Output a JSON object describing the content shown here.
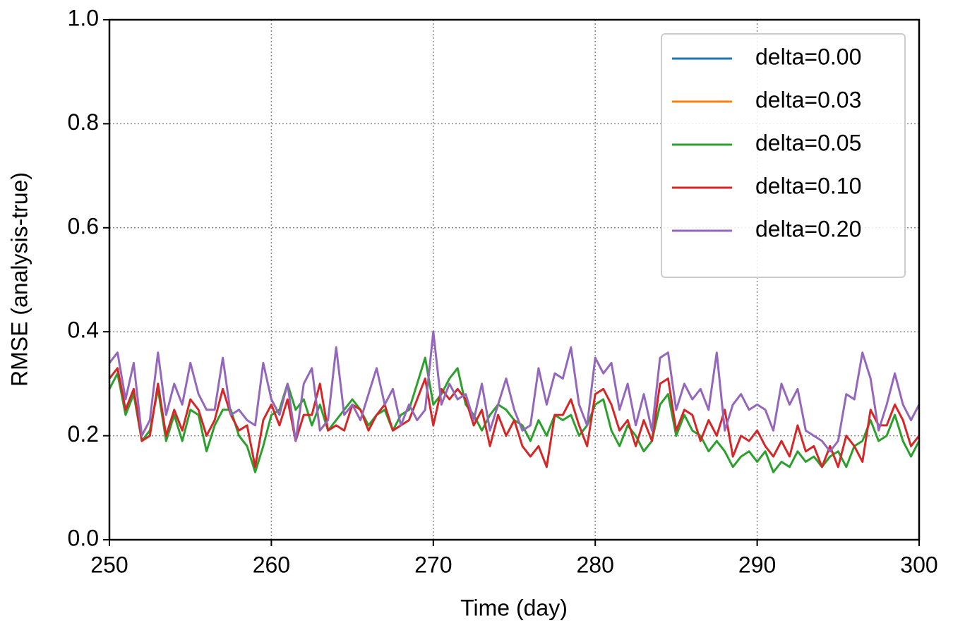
{
  "chart_data": {
    "type": "line",
    "xlabel": "Time (day)",
    "ylabel": "RMSE (analysis-true)",
    "xlim": [
      250,
      300
    ],
    "ylim": [
      0,
      1
    ],
    "xticks": [
      250,
      260,
      270,
      280,
      290,
      300
    ],
    "yticks": [
      {
        "value": 0,
        "label": "0.0"
      },
      0.2,
      0.4,
      0.6,
      0.8,
      {
        "value": 1,
        "label": "1.0"
      }
    ],
    "grid": true,
    "legend": "upper right",
    "x": [
      250,
      250.5,
      251,
      251.5,
      252,
      252.5,
      253,
      253.5,
      254,
      254.5,
      255,
      255.5,
      256,
      256.5,
      257,
      257.5,
      258,
      258.5,
      259,
      259.5,
      260,
      260.5,
      261,
      261.5,
      262,
      262.5,
      263,
      263.5,
      264,
      264.5,
      265,
      265.5,
      266,
      266.5,
      267,
      267.5,
      268,
      268.5,
      269,
      269.5,
      270,
      270.5,
      271,
      271.5,
      272,
      272.5,
      273,
      273.5,
      274,
      274.5,
      275,
      275.5,
      276,
      276.5,
      277,
      277.5,
      278,
      278.5,
      279,
      279.5,
      280,
      280.5,
      281,
      281.5,
      282,
      282.5,
      283,
      283.5,
      284,
      284.5,
      285,
      285.5,
      286,
      286.5,
      287,
      287.5,
      288,
      288.5,
      289,
      289.5,
      290,
      290.5,
      291,
      291.5,
      292,
      292.5,
      293,
      293.5,
      294,
      294.5,
      295,
      295.5,
      296,
      296.5,
      297,
      297.5,
      298,
      298.5,
      299,
      299.5,
      300
    ],
    "series": [
      {
        "name": "delta=0.00",
        "color": "#1f77b4",
        "values": [
          null,
          null,
          null,
          null,
          null,
          null,
          null,
          null,
          null,
          null,
          null,
          null,
          null,
          null,
          null,
          null,
          null,
          null,
          null,
          null,
          null,
          null,
          null,
          null,
          null,
          null,
          null,
          null,
          null,
          null,
          null,
          null,
          null,
          null,
          null,
          null,
          null,
          null,
          null,
          null,
          null,
          null,
          null,
          null,
          null,
          null,
          null,
          null,
          null,
          null,
          null,
          null,
          null,
          null,
          null,
          null,
          null,
          null,
          null,
          null,
          null,
          null,
          null,
          null,
          null,
          null,
          null,
          null,
          null,
          null,
          null,
          null,
          null,
          null,
          null,
          null,
          null,
          null,
          null,
          null,
          null,
          null,
          null,
          null,
          null,
          null,
          null,
          null,
          null,
          null,
          null,
          null,
          null,
          null,
          null,
          null,
          null,
          null,
          null,
          null,
          null
        ]
      },
      {
        "name": "delta=0.03",
        "color": "#ff7f0e",
        "values": [
          null,
          null,
          null,
          null,
          null,
          null,
          null,
          null,
          null,
          null,
          null,
          null,
          null,
          null,
          null,
          null,
          null,
          null,
          null,
          null,
          null,
          null,
          null,
          null,
          null,
          null,
          null,
          null,
          null,
          null,
          null,
          null,
          null,
          null,
          null,
          null,
          null,
          null,
          null,
          null,
          null,
          null,
          null,
          null,
          null,
          null,
          null,
          null,
          null,
          null,
          null,
          null,
          null,
          null,
          null,
          null,
          null,
          null,
          null,
          null,
          null,
          null,
          null,
          null,
          null,
          null,
          null,
          null,
          null,
          null,
          null,
          null,
          null,
          null,
          null,
          null,
          null,
          null,
          null,
          null,
          null,
          null,
          null,
          null,
          null,
          null,
          null,
          null,
          null,
          null,
          null,
          null,
          null,
          null,
          null,
          null,
          null,
          null,
          null,
          null,
          null
        ]
      },
      {
        "name": "delta=0.05",
        "color": "#2ca02c",
        "values": [
          0.29,
          0.32,
          0.24,
          0.28,
          0.19,
          0.21,
          0.29,
          0.19,
          0.24,
          0.19,
          0.25,
          0.24,
          0.17,
          0.22,
          0.25,
          0.25,
          0.2,
          0.18,
          0.13,
          0.18,
          0.24,
          0.25,
          0.3,
          0.25,
          0.27,
          0.22,
          0.26,
          0.21,
          0.23,
          0.25,
          0.27,
          0.25,
          0.22,
          0.24,
          0.25,
          0.21,
          0.24,
          0.25,
          0.3,
          0.35,
          0.26,
          0.28,
          0.31,
          0.33,
          0.26,
          0.24,
          0.21,
          0.24,
          0.26,
          0.25,
          0.23,
          0.22,
          0.19,
          0.23,
          0.2,
          0.24,
          0.23,
          0.24,
          0.2,
          0.22,
          0.26,
          0.27,
          0.21,
          0.18,
          0.22,
          0.2,
          0.17,
          0.19,
          0.26,
          0.28,
          0.2,
          0.24,
          0.21,
          0.2,
          0.17,
          0.19,
          0.17,
          0.14,
          0.16,
          0.17,
          0.15,
          0.17,
          0.13,
          0.15,
          0.14,
          0.17,
          0.15,
          0.16,
          0.14,
          0.16,
          0.17,
          0.14,
          0.18,
          0.19,
          0.23,
          0.19,
          0.2,
          0.24,
          0.19,
          0.16,
          0.19
        ]
      },
      {
        "name": "delta=0.10",
        "color": "#d62728",
        "values": [
          0.31,
          0.33,
          0.25,
          0.29,
          0.19,
          0.2,
          0.3,
          0.2,
          0.25,
          0.21,
          0.27,
          0.25,
          0.2,
          0.23,
          0.29,
          0.24,
          0.21,
          0.22,
          0.14,
          0.23,
          0.26,
          0.22,
          0.27,
          0.19,
          0.24,
          0.24,
          0.3,
          0.21,
          0.22,
          0.21,
          0.26,
          0.25,
          0.21,
          0.24,
          0.26,
          0.21,
          0.22,
          0.23,
          0.27,
          0.31,
          0.22,
          0.29,
          0.27,
          0.29,
          0.27,
          0.22,
          0.25,
          0.18,
          0.24,
          0.2,
          0.23,
          0.18,
          0.16,
          0.18,
          0.14,
          0.24,
          0.24,
          0.27,
          0.22,
          0.18,
          0.28,
          0.29,
          0.26,
          0.21,
          0.23,
          0.18,
          0.23,
          0.19,
          0.3,
          0.31,
          0.21,
          0.25,
          0.24,
          0.19,
          0.23,
          0.2,
          0.25,
          0.16,
          0.2,
          0.19,
          0.21,
          0.18,
          0.16,
          0.19,
          0.16,
          0.22,
          0.17,
          0.18,
          0.14,
          0.18,
          0.14,
          0.2,
          0.18,
          0.15,
          0.25,
          0.22,
          0.22,
          0.26,
          0.23,
          0.18,
          0.2
        ]
      },
      {
        "name": "delta=0.20",
        "color": "#9467bd",
        "values": [
          0.34,
          0.36,
          0.27,
          0.34,
          0.2,
          0.23,
          0.36,
          0.24,
          0.3,
          0.26,
          0.34,
          0.28,
          0.25,
          0.25,
          0.35,
          0.24,
          0.25,
          0.23,
          0.22,
          0.34,
          0.27,
          0.24,
          0.3,
          0.19,
          0.3,
          0.33,
          0.21,
          0.23,
          0.37,
          0.24,
          0.26,
          0.23,
          0.28,
          0.33,
          0.26,
          0.29,
          0.22,
          0.26,
          0.23,
          0.25,
          0.4,
          0.26,
          0.3,
          0.27,
          0.28,
          0.23,
          0.3,
          0.21,
          0.26,
          0.31,
          0.25,
          0.21,
          0.22,
          0.33,
          0.26,
          0.32,
          0.31,
          0.37,
          0.26,
          0.22,
          0.35,
          0.32,
          0.34,
          0.25,
          0.3,
          0.22,
          0.28,
          0.21,
          0.35,
          0.36,
          0.25,
          0.3,
          0.27,
          0.29,
          0.25,
          0.36,
          0.21,
          0.26,
          0.28,
          0.25,
          0.26,
          0.25,
          0.21,
          0.3,
          0.26,
          0.29,
          0.21,
          0.2,
          0.19,
          0.17,
          0.19,
          0.28,
          0.27,
          0.36,
          0.31,
          0.21,
          0.26,
          0.32,
          0.26,
          0.23,
          0.26
        ]
      }
    ]
  }
}
